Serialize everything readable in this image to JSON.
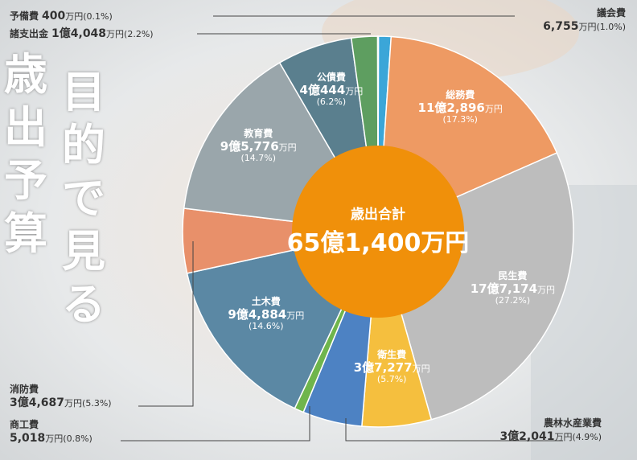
{
  "title": {
    "col1": [
      "歳",
      "出",
      "予",
      "算"
    ],
    "col2": [
      "目",
      "的",
      "で",
      "見",
      "る"
    ]
  },
  "center": {
    "label": "歳出合計",
    "value": "65億1,400万円"
  },
  "colors": {
    "orange_center": "#f0900a",
    "soumu": "#ee9a63",
    "minsei": "#bdbdbd",
    "eisei": "#f5bf3e",
    "nourin": "#4d82c3",
    "shoukou": "#6fb54c",
    "doboku": "#5b88a4",
    "shoubou": "#e8906a",
    "kyouiku": "#9aa6ab",
    "kousai": "#5a7f8e",
    "shoshishutsu": "#5e9e60",
    "yobi": "#3f85bd",
    "gikai": "#3ba6d8"
  },
  "chart_data": {
    "type": "pie",
    "title": "歳出合計 65億1,400万円",
    "unit": "万円",
    "slices": [
      {
        "name": "議会費",
        "amount": "6,755",
        "amount_unit": "万円",
        "value": 6755,
        "percent": "(1.0%)",
        "pct": 1.0
      },
      {
        "name": "総務費",
        "amount": "11億2,896",
        "amount_unit": "万円",
        "value": 112896,
        "percent": "(17.3%)",
        "pct": 17.3
      },
      {
        "name": "民生費",
        "amount": "17億7,174",
        "amount_unit": "万円",
        "value": 177174,
        "percent": "(27.2%)",
        "pct": 27.2
      },
      {
        "name": "衛生費",
        "amount": "3億7,277",
        "amount_unit": "万円",
        "value": 37277,
        "percent": "(5.7%)",
        "pct": 5.7
      },
      {
        "name": "農林水産業費",
        "amount": "3億2,041",
        "amount_unit": "万円",
        "value": 32041,
        "percent": "(4.9%)",
        "pct": 4.9
      },
      {
        "name": "商工費",
        "amount": "5,018",
        "amount_unit": "万円",
        "value": 5018,
        "percent": "(0.8%)",
        "pct": 0.8
      },
      {
        "name": "土木費",
        "amount": "9億4,884",
        "amount_unit": "万円",
        "value": 94884,
        "percent": "(14.6%)",
        "pct": 14.6
      },
      {
        "name": "消防費",
        "amount": "3億4,687",
        "amount_unit": "万円",
        "value": 34687,
        "percent": "(5.3%)",
        "pct": 5.3
      },
      {
        "name": "教育費",
        "amount": "9億5,776",
        "amount_unit": "万円",
        "value": 95776,
        "percent": "(14.7%)",
        "pct": 14.7
      },
      {
        "name": "公債費",
        "amount": "4億444",
        "amount_unit": "万円",
        "value": 40444,
        "percent": "(6.2%)",
        "pct": 6.2
      },
      {
        "name": "諸支出金",
        "amount": "1億4,048",
        "amount_unit": "万円",
        "value": 14048,
        "percent": "(2.2%)",
        "pct": 2.2
      },
      {
        "name": "予備費",
        "amount": "400",
        "amount_unit": "万円",
        "value": 400,
        "percent": "(0.1%)",
        "pct": 0.1
      }
    ]
  }
}
